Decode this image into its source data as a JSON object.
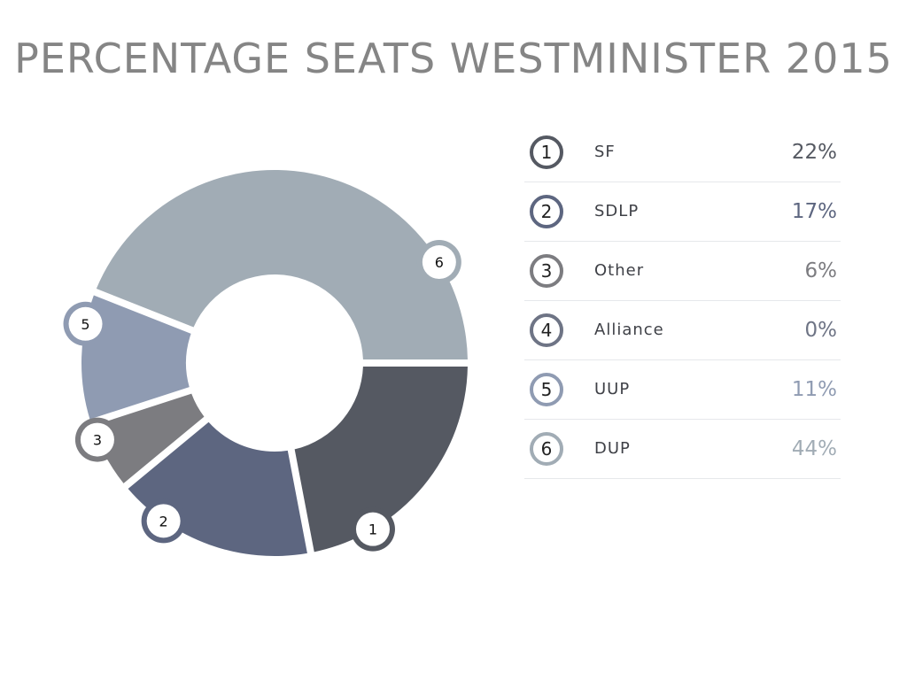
{
  "title": "PERCENTAGE SEATS WESTMINISTER 2015",
  "chart_data": {
    "type": "pie",
    "variant": "donut",
    "title": "PERCENTAGE SEATS WESTMINISTER 2015",
    "categories": [
      "SF",
      "SDLP",
      "Other",
      "Alliance",
      "UUP",
      "DUP"
    ],
    "values": [
      22,
      17,
      6,
      0,
      11,
      44
    ],
    "value_labels": [
      "22%",
      "17%",
      "6%",
      "0%",
      "11%",
      "44%"
    ],
    "slice_numbers": [
      "1",
      "2",
      "3",
      "4",
      "5",
      "6"
    ],
    "colors": [
      "#555962",
      "#5d6680",
      "#7c7c80",
      "#6e7485",
      "#8f9bb2",
      "#a1acb5"
    ],
    "legend_position": "right"
  }
}
